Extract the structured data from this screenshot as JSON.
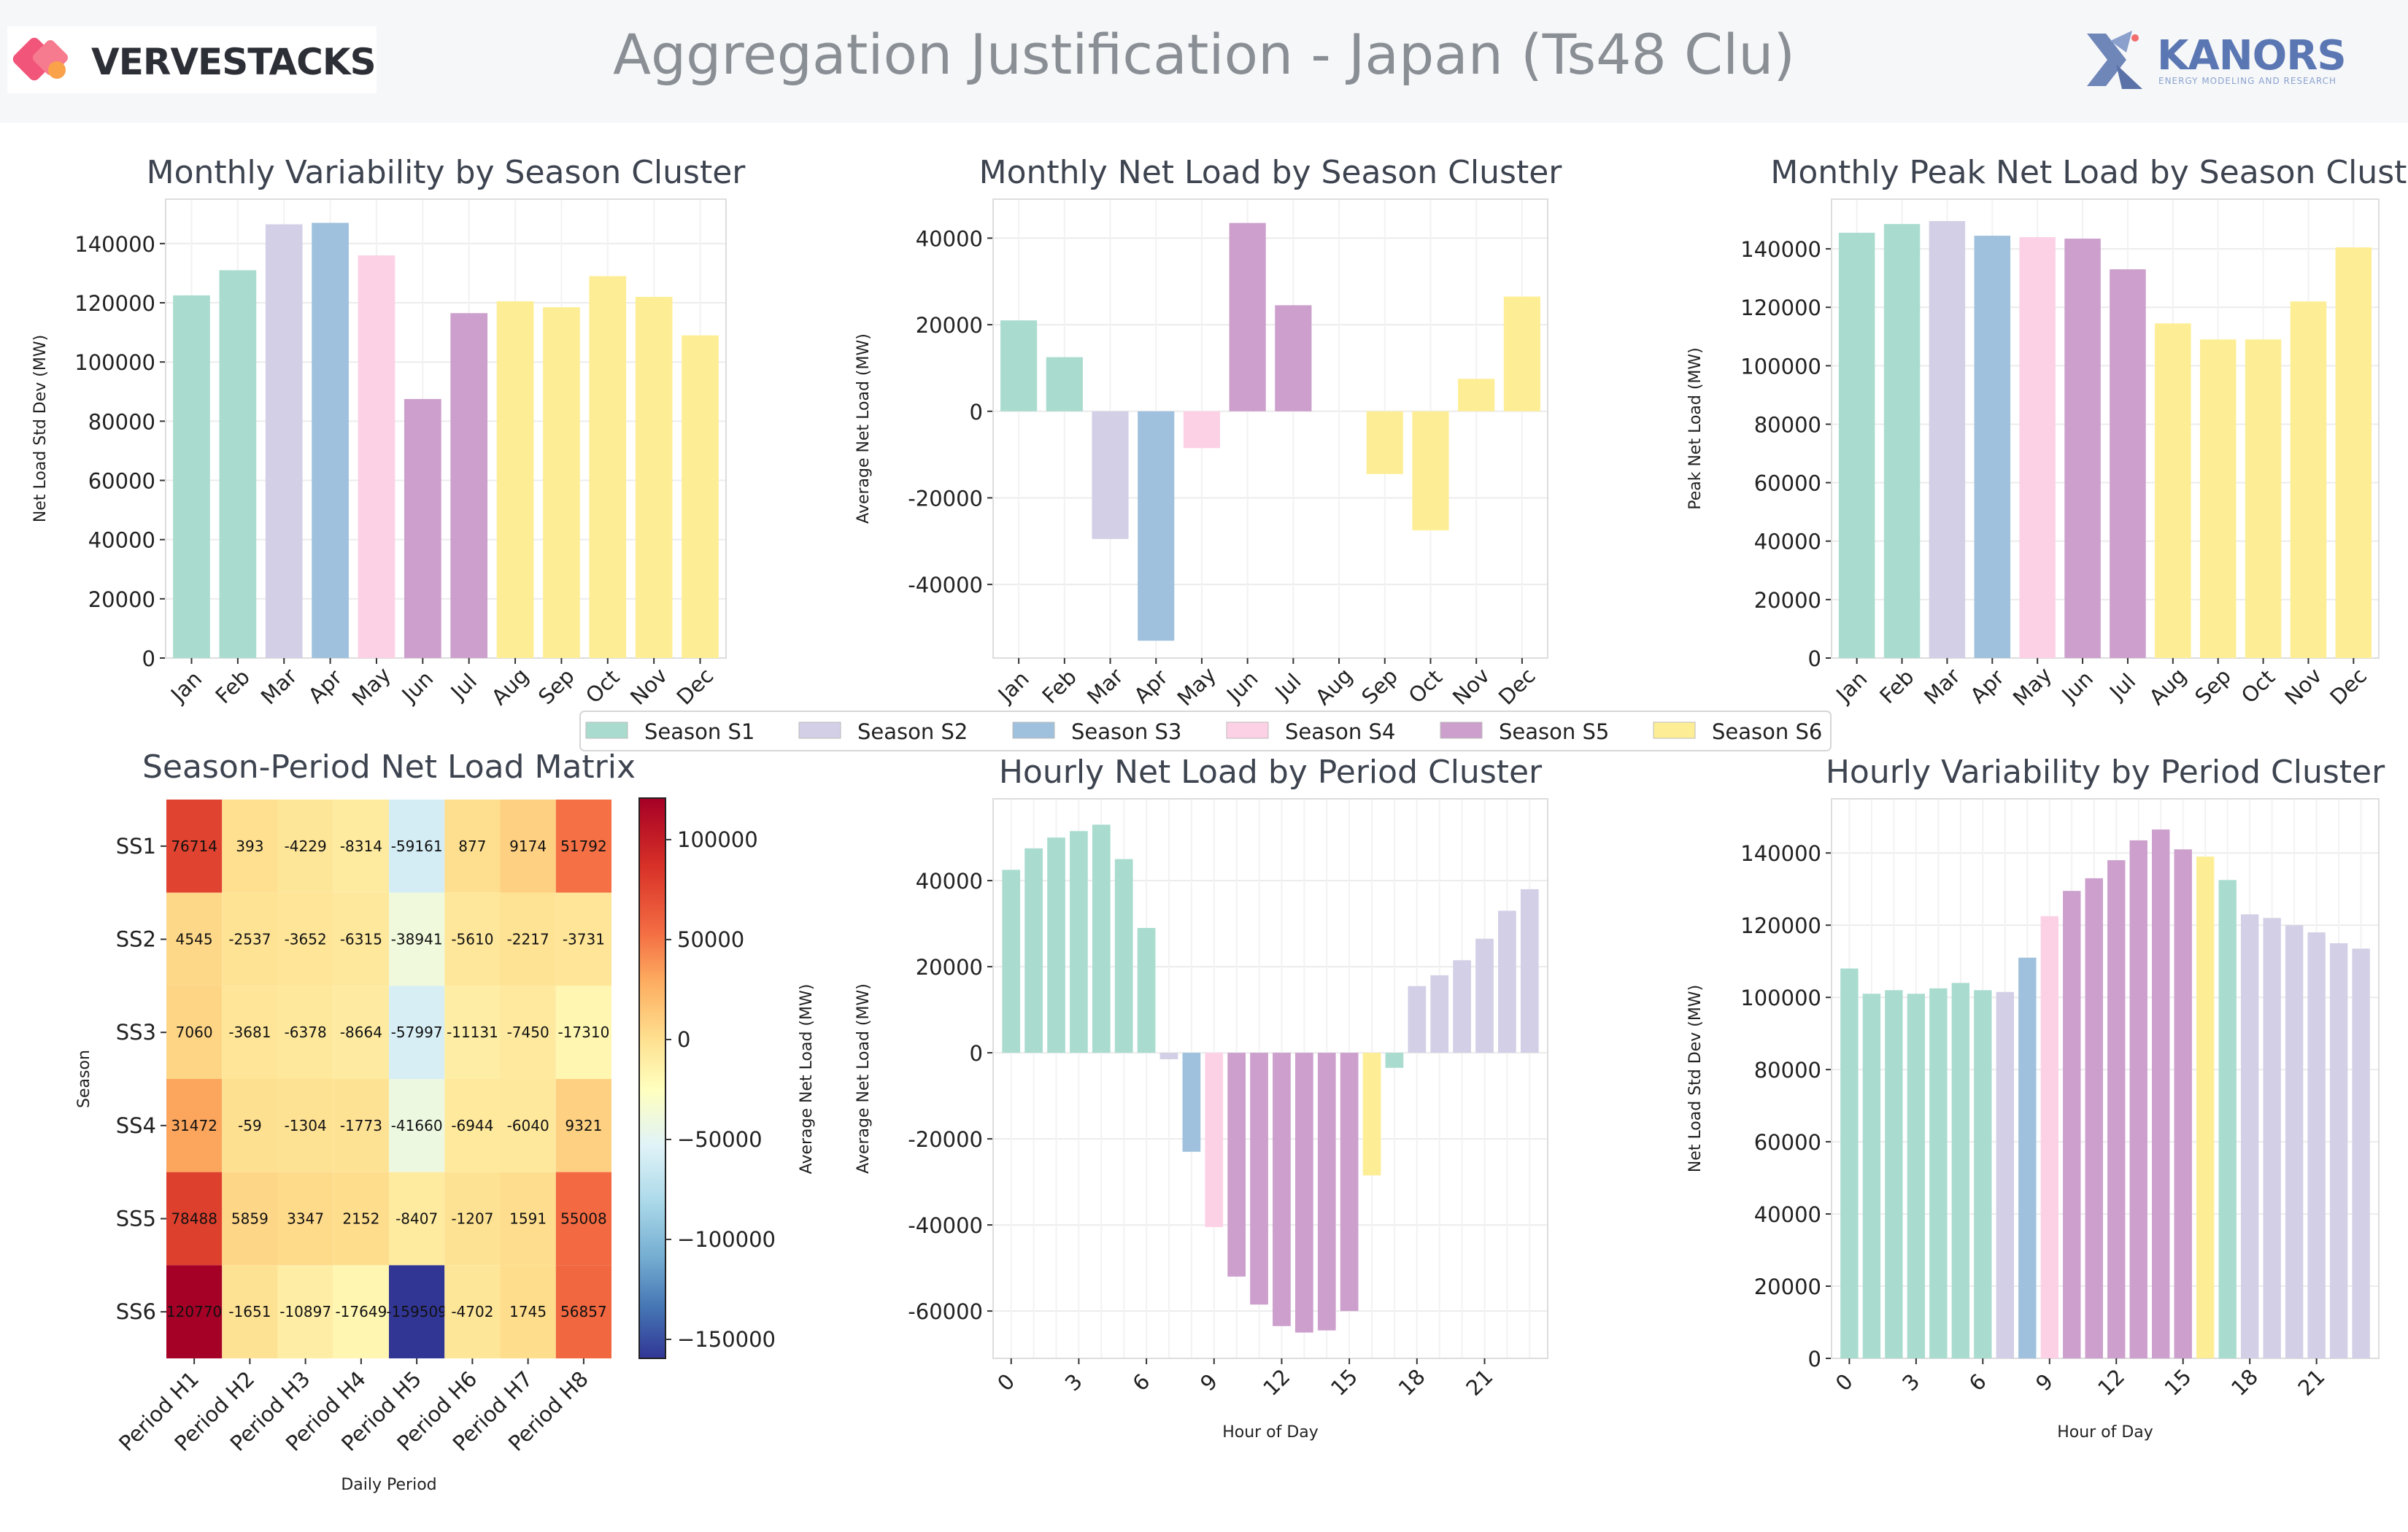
{
  "header": {
    "title": "Aggregation Justification - Japan (Ts48 Clu)",
    "brand_left": "VERVESTACKS",
    "brand_right": "KANORS",
    "brand_right_sub": "ENERGY MODELING AND RESEARCH"
  },
  "colors": {
    "season": {
      "S1": "#a9dccf",
      "S2": "#d3cfe6",
      "S3": "#9fc1dd",
      "S4": "#fdd1e5",
      "S5": "#cc9fcc",
      "S6": "#fdee96"
    }
  },
  "legend": {
    "items": [
      {
        "label": "Season S1",
        "key": "S1"
      },
      {
        "label": "Season S2",
        "key": "S2"
      },
      {
        "label": "Season S3",
        "key": "S3"
      },
      {
        "label": "Season S4",
        "key": "S4"
      },
      {
        "label": "Season S5",
        "key": "S5"
      },
      {
        "label": "Season S6",
        "key": "S6"
      }
    ]
  },
  "chart_data": [
    {
      "type": "bar",
      "title": "Monthly Variability by Season Cluster",
      "xlabel": "",
      "ylabel": "Net Load Std Dev (MW)",
      "categories": [
        "Jan",
        "Feb",
        "Mar",
        "Apr",
        "May",
        "Jun",
        "Jul",
        "Aug",
        "Sep",
        "Oct",
        "Nov",
        "Dec"
      ],
      "values": [
        122500,
        131000,
        146500,
        147000,
        136000,
        87500,
        116500,
        120500,
        118500,
        129000,
        122000,
        109000
      ],
      "clusters": [
        "S1",
        "S1",
        "S2",
        "S3",
        "S4",
        "S5",
        "S5",
        "S6",
        "S6",
        "S6",
        "S6",
        "S6"
      ],
      "ylim": [
        0,
        155000
      ],
      "yticks": [
        0,
        20000,
        40000,
        60000,
        80000,
        100000,
        120000,
        140000
      ],
      "grid": true
    },
    {
      "type": "bar",
      "title": "Monthly Net Load by Season Cluster",
      "xlabel": "",
      "ylabel": "Average Net Load (MW)",
      "categories": [
        "Jan",
        "Feb",
        "Mar",
        "Apr",
        "May",
        "Jun",
        "Jul",
        "Aug",
        "Sep",
        "Oct",
        "Nov",
        "Dec"
      ],
      "values": [
        21000,
        12500,
        -29500,
        -53000,
        -8500,
        43500,
        24500,
        0,
        -14500,
        -27500,
        7500,
        26500
      ],
      "clusters": [
        "S1",
        "S1",
        "S2",
        "S3",
        "S4",
        "S5",
        "S5",
        "S6",
        "S6",
        "S6",
        "S6",
        "S6"
      ],
      "ylim": [
        -57000,
        49000
      ],
      "yticks": [
        -40000,
        -20000,
        0,
        20000,
        40000
      ],
      "grid": true
    },
    {
      "type": "bar",
      "title": "Monthly Peak Net Load by Season Cluster",
      "xlabel": "",
      "ylabel": "Peak Net Load (MW)",
      "categories": [
        "Jan",
        "Feb",
        "Mar",
        "Apr",
        "May",
        "Jun",
        "Jul",
        "Aug",
        "Sep",
        "Oct",
        "Nov",
        "Dec"
      ],
      "values": [
        145500,
        148500,
        149500,
        144500,
        144000,
        143500,
        133000,
        114500,
        109000,
        109000,
        122000,
        140500
      ],
      "clusters": [
        "S1",
        "S1",
        "S2",
        "S3",
        "S4",
        "S5",
        "S5",
        "S6",
        "S6",
        "S6",
        "S6",
        "S6"
      ],
      "ylim": [
        0,
        157000
      ],
      "yticks": [
        0,
        20000,
        40000,
        60000,
        80000,
        100000,
        120000,
        140000
      ],
      "grid": true
    },
    {
      "type": "heatmap",
      "title": "Season-Period Net Load Matrix",
      "xlabel": "Daily Period",
      "ylabel": "Season",
      "colorbar_label": "Average Net Load (MW)",
      "x": [
        "Period H1",
        "Period H2",
        "Period H3",
        "Period H4",
        "Period H5",
        "Period H6",
        "Period H7",
        "Period H8"
      ],
      "y": [
        "SS1",
        "SS2",
        "SS3",
        "SS4",
        "SS5",
        "SS6"
      ],
      "z": [
        [
          76714,
          393,
          -4229,
          -8314,
          -59161,
          877,
          9174,
          51792
        ],
        [
          4545,
          -2537,
          -3652,
          -6315,
          -38941,
          -5610,
          -2217,
          -3731
        ],
        [
          7060,
          -3681,
          -6378,
          -8664,
          -57997,
          -11131,
          -7450,
          -17310
        ],
        [
          31472,
          -59,
          -1304,
          -1773,
          -41660,
          -6944,
          -6040,
          9321
        ],
        [
          78488,
          5859,
          3347,
          2152,
          -8407,
          -1207,
          1591,
          55008
        ],
        [
          120770,
          -1651,
          -10897,
          -17649,
          -159509,
          -4702,
          1745,
          56857
        ]
      ],
      "zlim": [
        -159509,
        120770
      ],
      "colorbar_ticks": [
        100000,
        50000,
        0,
        -50000,
        -100000,
        -150000
      ],
      "colormap": "RdYlBu_r"
    },
    {
      "type": "bar",
      "title": "Hourly Net Load by Period Cluster",
      "xlabel": "Hour of Day",
      "ylabel": "Average Net Load (MW)",
      "x": [
        0,
        1,
        2,
        3,
        4,
        5,
        6,
        7,
        8,
        9,
        10,
        11,
        12,
        13,
        14,
        15,
        16,
        17,
        18,
        19,
        20,
        21,
        22,
        23
      ],
      "values": [
        42500,
        47500,
        50000,
        51500,
        53000,
        45000,
        29000,
        -1500,
        -23000,
        -40500,
        -52000,
        -58500,
        -63500,
        -65000,
        -64500,
        -60000,
        -28500,
        -3500,
        15500,
        18000,
        21500,
        26500,
        33000,
        38000
      ],
      "clusters": [
        "S1",
        "S1",
        "S1",
        "S1",
        "S1",
        "S1",
        "S1",
        "S2",
        "S3",
        "S4",
        "S5",
        "S5",
        "S5",
        "S5",
        "S5",
        "S5",
        "S6",
        "S1",
        "S2",
        "S2",
        "S2",
        "S2",
        "S2",
        "S2"
      ],
      "ylim": [
        -71000,
        59000
      ],
      "yticks": [
        -60000,
        -40000,
        -20000,
        0,
        20000,
        40000
      ],
      "xticks": [
        0,
        3,
        6,
        9,
        12,
        15,
        18,
        21
      ],
      "grid": true
    },
    {
      "type": "bar",
      "title": "Hourly Variability by Period Cluster",
      "xlabel": "Hour of Day",
      "ylabel": "Net Load Std Dev (MW)",
      "x": [
        0,
        1,
        2,
        3,
        4,
        5,
        6,
        7,
        8,
        9,
        10,
        11,
        12,
        13,
        14,
        15,
        16,
        17,
        18,
        19,
        20,
        21,
        22,
        23
      ],
      "values": [
        108000,
        101000,
        102000,
        101000,
        102500,
        104000,
        102000,
        101500,
        111000,
        122500,
        129500,
        133000,
        138000,
        143500,
        146500,
        141000,
        139000,
        132500,
        123000,
        122000,
        120000,
        118000,
        115000,
        113500
      ],
      "clusters": [
        "S1",
        "S1",
        "S1",
        "S1",
        "S1",
        "S1",
        "S1",
        "S2",
        "S3",
        "S4",
        "S5",
        "S5",
        "S5",
        "S5",
        "S5",
        "S5",
        "S6",
        "S1",
        "S2",
        "S2",
        "S2",
        "S2",
        "S2",
        "S2"
      ],
      "ylim": [
        0,
        155000
      ],
      "yticks": [
        0,
        20000,
        40000,
        60000,
        80000,
        100000,
        120000,
        140000
      ],
      "xticks": [
        0,
        3,
        6,
        9,
        12,
        15,
        18,
        21
      ],
      "grid": true
    }
  ]
}
